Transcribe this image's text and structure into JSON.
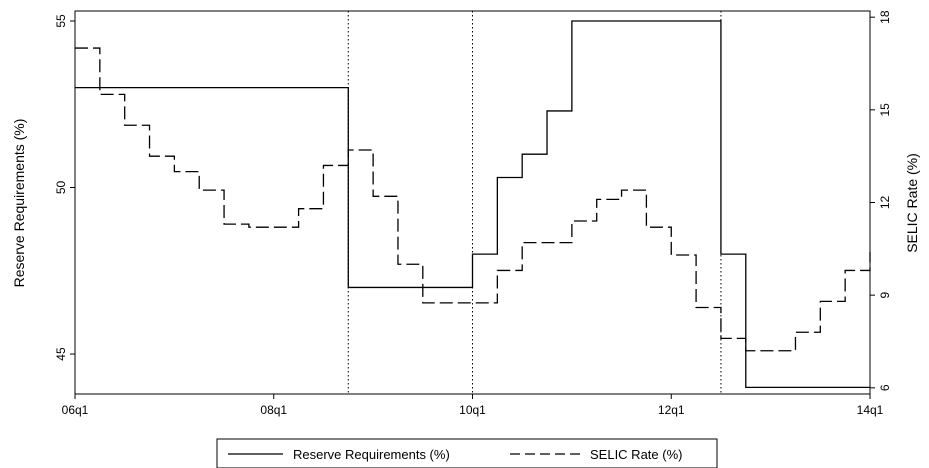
{
  "chart_data": {
    "type": "line",
    "step": true,
    "x_axis": {
      "ticks": [
        "06q1",
        "08q1",
        "10q1",
        "12q1",
        "14q1"
      ]
    },
    "y_left": {
      "label": "Reserve Requirements (%)",
      "range": [
        43.8,
        55.3
      ],
      "ticks": [
        45,
        50,
        55
      ]
    },
    "y_right": {
      "label": "SELIC Rate (%)",
      "range": [
        5.8,
        18.2
      ],
      "ticks": [
        6,
        9,
        12,
        15,
        18
      ]
    },
    "vertical_lines": [
      "08q4",
      "10q1",
      "12q3"
    ],
    "series": [
      {
        "name": "Reserve Requirements (%)",
        "axis": "left",
        "style": "solid",
        "x": [
          "06q1",
          "08q4",
          "10q1",
          "10q2",
          "10q3",
          "10q4",
          "11q1",
          "12q3",
          "12q4",
          "14q1"
        ],
        "values": [
          53,
          47,
          48,
          50.3,
          51,
          52.3,
          55,
          48,
          44,
          44
        ]
      },
      {
        "name": "SELIC Rate (%)",
        "axis": "right",
        "style": "dashed",
        "x": [
          "06q1",
          "06q2",
          "06q3",
          "06q4",
          "07q1",
          "07q2",
          "07q3",
          "07q4",
          "08q1",
          "08q2",
          "08q3",
          "08q4",
          "09q1",
          "09q2",
          "09q3",
          "09q4",
          "10q1",
          "10q2",
          "10q3",
          "10q4",
          "11q1",
          "11q2",
          "11q3",
          "11q4",
          "12q1",
          "12q2",
          "12q3",
          "12q4",
          "13q1",
          "13q2",
          "13q3",
          "13q4",
          "14q1"
        ],
        "values": [
          17,
          15.5,
          14.5,
          13.5,
          13,
          12.4,
          11.3,
          11.2,
          11.2,
          11.8,
          13.2,
          13.7,
          12.2,
          10,
          8.75,
          8.75,
          8.75,
          9.8,
          10.7,
          10.7,
          11.4,
          12.1,
          12.4,
          11.2,
          10.3,
          8.6,
          7.6,
          7.2,
          7.2,
          7.8,
          8.8,
          9.8,
          10.4
        ]
      }
    ],
    "legend": {
      "position": "bottom",
      "entries": [
        "Reserve Requirements (%)",
        "SELIC Rate (%)"
      ]
    },
    "grid": false
  }
}
